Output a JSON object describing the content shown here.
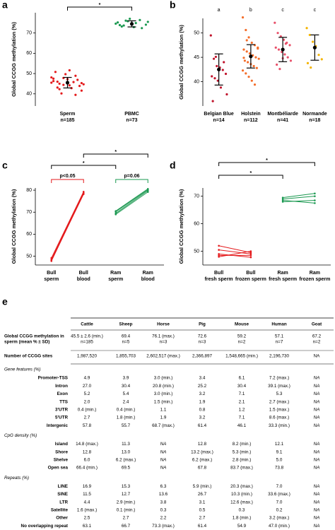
{
  "chart_data": [
    {
      "type": "strip",
      "panel": "a",
      "ylabel": "Global CCGG methylation (%)",
      "categories": [
        [
          "Sperm",
          "n=185"
        ],
        [
          "PBMC",
          "n=73"
        ]
      ],
      "series": [
        {
          "color": "#e41a1c",
          "values": [
            45.5,
            43.1,
            47.8,
            44.2,
            48.9,
            41.6,
            46.3,
            45.0,
            49.7,
            42.8,
            46.9,
            44.7,
            50.8,
            40.2,
            47.2,
            45.8,
            43.9,
            48.1,
            46.0,
            44.4,
            51.6,
            39.5,
            45.3,
            47.5,
            42.3
          ]
        },
        {
          "color": "#1a9850",
          "values": [
            74.6,
            73.2,
            75.8,
            72.9,
            76.4,
            74.1,
            75.2,
            73.7,
            77.0,
            74.9,
            72.4,
            75.5,
            73.9,
            76.1,
            74.3
          ]
        }
      ],
      "means": [
        45.5,
        74.5
      ],
      "errors": [
        2.6,
        1.5
      ],
      "ylim": [
        34,
        80
      ],
      "yticks": [
        40,
        50,
        60,
        70
      ],
      "annotations": [
        {
          "text": "*"
        }
      ]
    },
    {
      "type": "strip",
      "panel": "b",
      "ylabel": "Global CCGG methylation (%)",
      "categories": [
        [
          "Belgian Blue",
          "n=14"
        ],
        [
          "Holstein",
          "n=112"
        ],
        [
          "Montbéliarde",
          "n=41"
        ],
        [
          "Normande",
          "n=18"
        ]
      ],
      "series": [
        {
          "color": "#c0142c",
          "values": [
            49.5,
            44.7,
            43.2,
            42.9,
            42.4,
            41.6,
            41.1,
            40.7,
            40.2,
            38.8,
            44.0,
            37.4,
            36.0,
            45.1
          ]
        },
        {
          "color": "#f46d2a",
          "values": [
            53.2,
            50.6,
            49.1,
            48.0,
            47.5,
            47.0,
            46.6,
            46.2,
            45.8,
            45.4,
            45.0,
            44.7,
            44.3,
            44.0,
            43.6,
            43.2,
            42.8,
            42.3,
            41.7,
            41.0,
            40.2,
            39.4,
            46.8,
            44.9,
            48.5
          ]
        },
        {
          "color": "#e8506a",
          "values": [
            52.1,
            50.0,
            49.3,
            48.6,
            48.0,
            47.5,
            47.0,
            46.6,
            46.1,
            45.6,
            45.0,
            44.3,
            43.5,
            42.6,
            44.8,
            47.8
          ]
        },
        {
          "color": "#f4b400",
          "values": [
            51.0,
            49.6,
            48.2,
            47.3,
            45.5,
            44.6,
            43.8,
            42.9
          ]
        }
      ],
      "means": [
        42.5,
        45.2,
        46.6,
        47.0
      ],
      "errors": [
        3.2,
        2.4,
        2.5,
        2.6
      ],
      "group_letters": [
        "a",
        "b",
        "c",
        "c"
      ],
      "ylim": [
        35,
        53
      ],
      "yticks": [
        40,
        45,
        50
      ],
      "annotations": []
    },
    {
      "type": "line",
      "panel": "c",
      "ylabel": "Global CCGG methylation (%)",
      "categories": [
        [
          "Bull",
          "sperm"
        ],
        [
          "Bull",
          "blood"
        ],
        [
          "Ram",
          "sperm"
        ],
        [
          "Ram",
          "blood"
        ]
      ],
      "series": [
        {
          "color": "#e41a1c",
          "values": [
            48.5,
            79.0,
            null,
            null
          ]
        },
        {
          "color": "#e41a1c",
          "values": [
            47.8,
            78.6,
            null,
            null
          ]
        },
        {
          "color": "#e41a1c",
          "values": [
            49.2,
            79.3,
            null,
            null
          ]
        },
        {
          "color": "#e41a1c",
          "values": [
            48.0,
            78.2,
            null,
            null
          ]
        },
        {
          "color": "#1a9850",
          "values": [
            null,
            null,
            69.5,
            79.8
          ]
        },
        {
          "color": "#1a9850",
          "values": [
            null,
            null,
            70.5,
            80.6
          ]
        },
        {
          "color": "#1a9850",
          "values": [
            null,
            null,
            69.0,
            79.2
          ]
        },
        {
          "color": "#1a9850",
          "values": [
            null,
            null,
            70.2,
            80.2
          ]
        }
      ],
      "ylim": [
        46,
        81
      ],
      "yticks": [
        50,
        60,
        70,
        80
      ],
      "annotations": [
        {
          "text": "*"
        },
        {
          "text": "*"
        },
        {
          "text": "p<0.05",
          "color": "#e41a1c"
        },
        {
          "text": "p=0.06",
          "color": "#1a9850"
        }
      ]
    },
    {
      "type": "line",
      "panel": "d",
      "ylabel": "Global CCGG methylation (%)",
      "categories": [
        [
          "Bull",
          "fresh sperm"
        ],
        [
          "Bull",
          "frozen sperm"
        ],
        [
          "Ram",
          "fresh sperm"
        ],
        [
          "Ram",
          "frozen sperm"
        ]
      ],
      "series": [
        {
          "color": "#e41a1c",
          "values": [
            52.0,
            49.5,
            null,
            null
          ]
        },
        {
          "color": "#e41a1c",
          "values": [
            50.5,
            49.0,
            null,
            null
          ]
        },
        {
          "color": "#e41a1c",
          "values": [
            48.5,
            48.5,
            null,
            null
          ]
        },
        {
          "color": "#e41a1c",
          "values": [
            48.0,
            50.0,
            null,
            null
          ]
        },
        {
          "color": "#e41a1c",
          "values": [
            49.0,
            47.8,
            null,
            null
          ]
        },
        {
          "color": "#1a9850",
          "values": [
            null,
            null,
            68.0,
            68.5
          ]
        },
        {
          "color": "#1a9850",
          "values": [
            null,
            null,
            69.0,
            70.0
          ]
        },
        {
          "color": "#1a9850",
          "values": [
            null,
            null,
            69.5,
            71.0
          ]
        },
        {
          "color": "#1a9850",
          "values": [
            null,
            null,
            68.5,
            67.5
          ]
        }
      ],
      "ylim": [
        45,
        73
      ],
      "yticks": [
        50,
        60,
        70
      ],
      "annotations": [
        {
          "text": "*"
        },
        {
          "text": "*"
        }
      ]
    }
  ],
  "table": {
    "panel": "e",
    "columns": [
      "Cattle",
      "Sheep",
      "Horse",
      "Pig",
      "Mouse",
      "Human",
      "Goat"
    ],
    "summary_rows": [
      {
        "label": [
          "Global CCGG methylation in",
          "sperm (mean % ± SD)"
        ],
        "cells": [
          [
            "45.5 ± 2.6 (min.)",
            "n=185"
          ],
          [
            "69.4",
            "n=5"
          ],
          [
            "76.1 (max.)",
            "n=3"
          ],
          [
            "72.6",
            "n=3"
          ],
          [
            "59.2",
            "n=2"
          ],
          [
            "57.1",
            "n=7"
          ],
          [
            "67.2",
            "n=2"
          ]
        ]
      },
      {
        "label": [
          "Number of CCGG sites"
        ],
        "cells": [
          [
            "1,987,520"
          ],
          [
            "1,855,703"
          ],
          [
            "2,602,517 (max.)"
          ],
          [
            "2,366,897"
          ],
          [
            "1,548,665 (min.)"
          ],
          [
            "2,196,730"
          ],
          [
            "NA"
          ]
        ]
      }
    ],
    "sections": [
      {
        "title": "Gene features  (%)",
        "rows": [
          {
            "label": "Promoter-TSS",
            "cells": [
              "4.9",
              "3.9",
              "3.0 (min.)",
              "3.4",
              "6.1",
              "7.2 (max.)",
              "NA"
            ]
          },
          {
            "label": "Intron",
            "cells": [
              "27.0",
              "30.4",
              "20.8 (min.)",
              "25.2",
              "30.4",
              "39.1 (max.)",
              "NA"
            ]
          },
          {
            "label": "Exon",
            "cells": [
              "5.2",
              "5.4",
              "3.0 (min.)",
              "3.2",
              "7.1",
              "5.3",
              "NA"
            ]
          },
          {
            "label": "TTS",
            "cells": [
              "2.0",
              "2.4",
              "1.5 (min.)",
              "1.9",
              "2.1",
              "2.7 (max.)",
              "NA"
            ]
          },
          {
            "label": "3'UTR",
            "cells": [
              "0.4 (min.)",
              "0.4 (min.)",
              "1.1",
              "0.8",
              "1.2",
              "1.5 (max.)",
              "NA"
            ]
          },
          {
            "label": "5'UTR",
            "cells": [
              "2.7",
              "1.8 (min.)",
              "1.9",
              "3.2",
              "7.1",
              "8.6 (max.)",
              "NA"
            ]
          },
          {
            "label": "Intergenic",
            "cells": [
              "57.8",
              "55.7",
              "68.7 (max.)",
              "61.4",
              "46.1",
              "33.3 (min.)",
              "NA"
            ]
          }
        ]
      },
      {
        "title": "CpG density  (%)",
        "rows": [
          {
            "label": "Island",
            "cells": [
              "14.8 (max.)",
              "11.3",
              "NA",
              "12.8",
              "8.2 (min.)",
              "12.1",
              "NA"
            ]
          },
          {
            "label": "Shore",
            "cells": [
              "12.8",
              "13.0",
              "NA",
              "13.2 (max.)",
              "5.3 (min.)",
              "9.1",
              "NA"
            ]
          },
          {
            "label": "Shelve",
            "cells": [
              "6.0",
              "6.2 (max.)",
              "NA",
              "6.2 (max.)",
              "2.8 (min.)",
              "5.0",
              "NA"
            ]
          },
          {
            "label": "Open sea",
            "cells": [
              "66.4 (min.)",
              "69.5",
              "NA",
              "67.8",
              "83.7 (max.)",
              "73.8",
              "NA"
            ]
          }
        ]
      },
      {
        "title": "Repeats  (%)",
        "rows": [
          {
            "label": "LINE",
            "cells": [
              "16.9",
              "15.3",
              "6.3",
              "5.9 (min.)",
              "20.3 (max.)",
              "7.0",
              "NA"
            ]
          },
          {
            "label": "SINE",
            "cells": [
              "11.5",
              "12.7",
              "13.6",
              "26.7",
              "10.3 (min.)",
              "33.6 (max.)",
              "NA"
            ]
          },
          {
            "label": "LTR",
            "cells": [
              "4.4",
              "2.9 (min.)",
              "3.8",
              "3.1",
              "12.6 (max.)",
              "7.0",
              "NA"
            ]
          },
          {
            "label": "Satellite",
            "cells": [
              "1.6 (max.)",
              "0.1 (min.)",
              "0.3",
              "0.5",
              "0.3",
              "0.2",
              "NA"
            ]
          },
          {
            "label": "Other",
            "cells": [
              "2.5",
              "2.7",
              "2.2",
              "2.7",
              "1.8 (min.)",
              "3.2 (max.)",
              "NA"
            ]
          },
          {
            "label": "No overlapping repeat",
            "cells": [
              "63.1",
              "66.7",
              "73.3 (max.)",
              "61.4",
              "54.9",
              "47.0 (min.)",
              "NA"
            ]
          }
        ]
      }
    ]
  }
}
